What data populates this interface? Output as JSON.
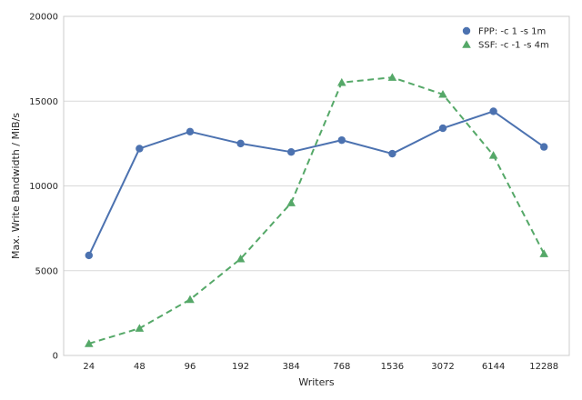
{
  "chart_data": {
    "type": "line",
    "categories": [
      "24",
      "48",
      "96",
      "192",
      "384",
      "768",
      "1536",
      "3072",
      "6144",
      "12288"
    ],
    "series": [
      {
        "name": "FPP: -c 1 -s 1m",
        "color": "#4c72b0",
        "marker": "circle",
        "line_style": "solid",
        "values": [
          5900,
          12200,
          13200,
          12500,
          12000,
          12700,
          11900,
          13400,
          14400,
          12300
        ]
      },
      {
        "name": "SSF: -c -1 -s 4m",
        "color": "#55a868",
        "marker": "triangle",
        "line_style": "dashed",
        "values": [
          700,
          1600,
          3300,
          5700,
          9000,
          16100,
          16400,
          15400,
          11800,
          6000
        ]
      }
    ],
    "xlabel": "Writers",
    "ylabel": "Max. Write Bandwidth / MiB/s",
    "ylim": [
      0,
      20000
    ],
    "yticks": [
      "0",
      "5000",
      "10000",
      "15000",
      "20000"
    ],
    "grid": "horizontal",
    "legend_position": "top-right"
  }
}
